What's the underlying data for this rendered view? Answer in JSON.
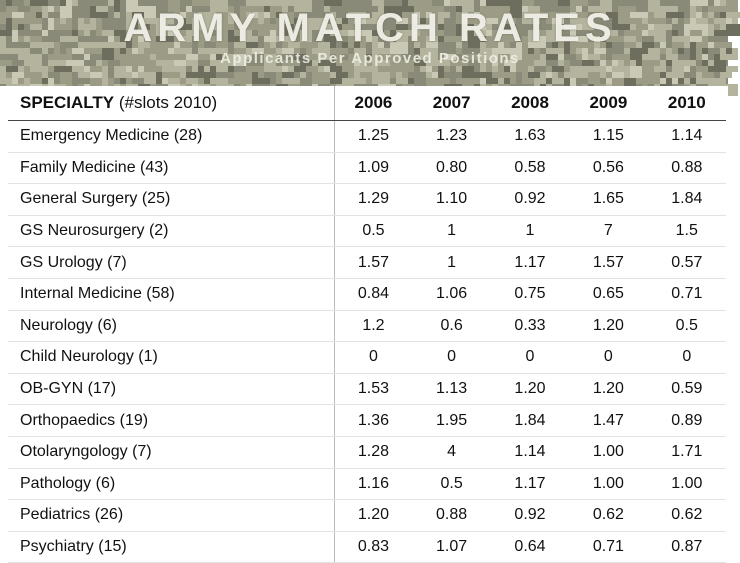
{
  "header": {
    "title": "ARMY MATCH RATES",
    "subtitle": "Applicants Per Approved Positions"
  },
  "table": {
    "specialty_header_bold": "SPECIALTY",
    "specialty_header_rest": " (#slots 2010)",
    "years": [
      "2006",
      "2007",
      "2008",
      "2009",
      "2010"
    ],
    "rows": [
      {
        "specialty": "Emergency Medicine (28)",
        "values": [
          "1.25",
          "1.23",
          "1.63",
          "1.15",
          "1.14"
        ]
      },
      {
        "specialty": "Family Medicine (43)",
        "values": [
          "1.09",
          "0.80",
          "0.58",
          "0.56",
          "0.88"
        ]
      },
      {
        "specialty": "General Surgery (25)",
        "values": [
          "1.29",
          "1.10",
          "0.92",
          "1.65",
          "1.84"
        ]
      },
      {
        "specialty": "GS Neurosurgery (2)",
        "values": [
          "0.5",
          "1",
          "1",
          "7",
          "1.5"
        ]
      },
      {
        "specialty": "GS Urology (7)",
        "values": [
          "1.57",
          "1",
          "1.17",
          "1.57",
          "0.57"
        ]
      },
      {
        "specialty": "Internal Medicine (58)",
        "values": [
          "0.84",
          "1.06",
          "0.75",
          "0.65",
          "0.71"
        ]
      },
      {
        "specialty": "Neurology (6)",
        "values": [
          "1.2",
          "0.6",
          "0.33",
          "1.20",
          "0.5"
        ]
      },
      {
        "specialty": "Child Neurology (1)",
        "values": [
          "0",
          "0",
          "0",
          "0",
          "0"
        ]
      },
      {
        "specialty": "OB-GYN (17)",
        "values": [
          "1.53",
          "1.13",
          "1.20",
          "1.20",
          "0.59"
        ]
      },
      {
        "specialty": "Orthopaedics (19)",
        "values": [
          "1.36",
          "1.95",
          "1.84",
          "1.47",
          "0.89"
        ]
      },
      {
        "specialty": "Otolaryngology (7)",
        "values": [
          "1.28",
          "4",
          "1.14",
          "1.00",
          "1.71"
        ]
      },
      {
        "specialty": "Pathology (6)",
        "values": [
          "1.16",
          "0.5",
          "1.17",
          "1.00",
          "1.00"
        ]
      },
      {
        "specialty": "Pediatrics (26)",
        "values": [
          "1.20",
          "0.88",
          "0.92",
          "0.62",
          "0.62"
        ]
      },
      {
        "specialty": "Psychiatry (15)",
        "values": [
          "0.83",
          "1.07",
          "0.64",
          "0.71",
          "0.87"
        ]
      }
    ]
  },
  "colors": {
    "camo_base": "#8a8a78",
    "camo_light": "#b4b49e",
    "camo_mid": "#9c9c86",
    "camo_dark": "#6e6e5e",
    "camo_pale": "#c9c9b6"
  }
}
